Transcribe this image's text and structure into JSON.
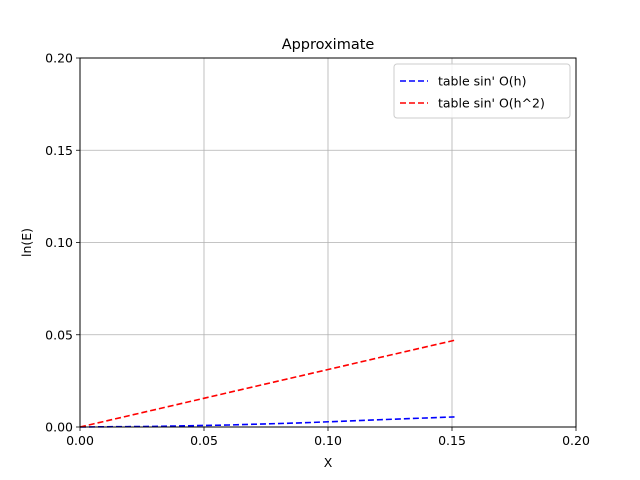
{
  "chart_data": {
    "type": "line",
    "title": "Approximate",
    "xlabel": "X",
    "ylabel": "ln(E)",
    "xlim": [
      0.0,
      0.2
    ],
    "ylim": [
      0.0,
      0.2
    ],
    "xticks": [
      0.0,
      0.05,
      0.1,
      0.15,
      0.2
    ],
    "yticks": [
      0.0,
      0.05,
      0.1,
      0.15,
      0.2
    ],
    "xtick_labels": [
      "0.00",
      "0.05",
      "0.10",
      "0.15",
      "0.20"
    ],
    "ytick_labels": [
      "0.00",
      "0.05",
      "0.10",
      "0.15",
      "0.20"
    ],
    "grid": true,
    "legend_position": "top-right",
    "series": [
      {
        "name": "table sin' O(h)",
        "color": "#0000ff",
        "style": "dashed",
        "x": [
          0.0,
          0.03,
          0.06,
          0.09,
          0.12,
          0.151
        ],
        "y": [
          0.0,
          0.0003,
          0.0011,
          0.0023,
          0.0039,
          0.0055
        ]
      },
      {
        "name": "table sin' O(h^2)",
        "color": "#ff0000",
        "style": "dashed",
        "x": [
          0.0,
          0.03,
          0.06,
          0.09,
          0.12,
          0.151
        ],
        "y": [
          0.0,
          0.0093,
          0.0187,
          0.028,
          0.0374,
          0.047
        ]
      }
    ]
  }
}
